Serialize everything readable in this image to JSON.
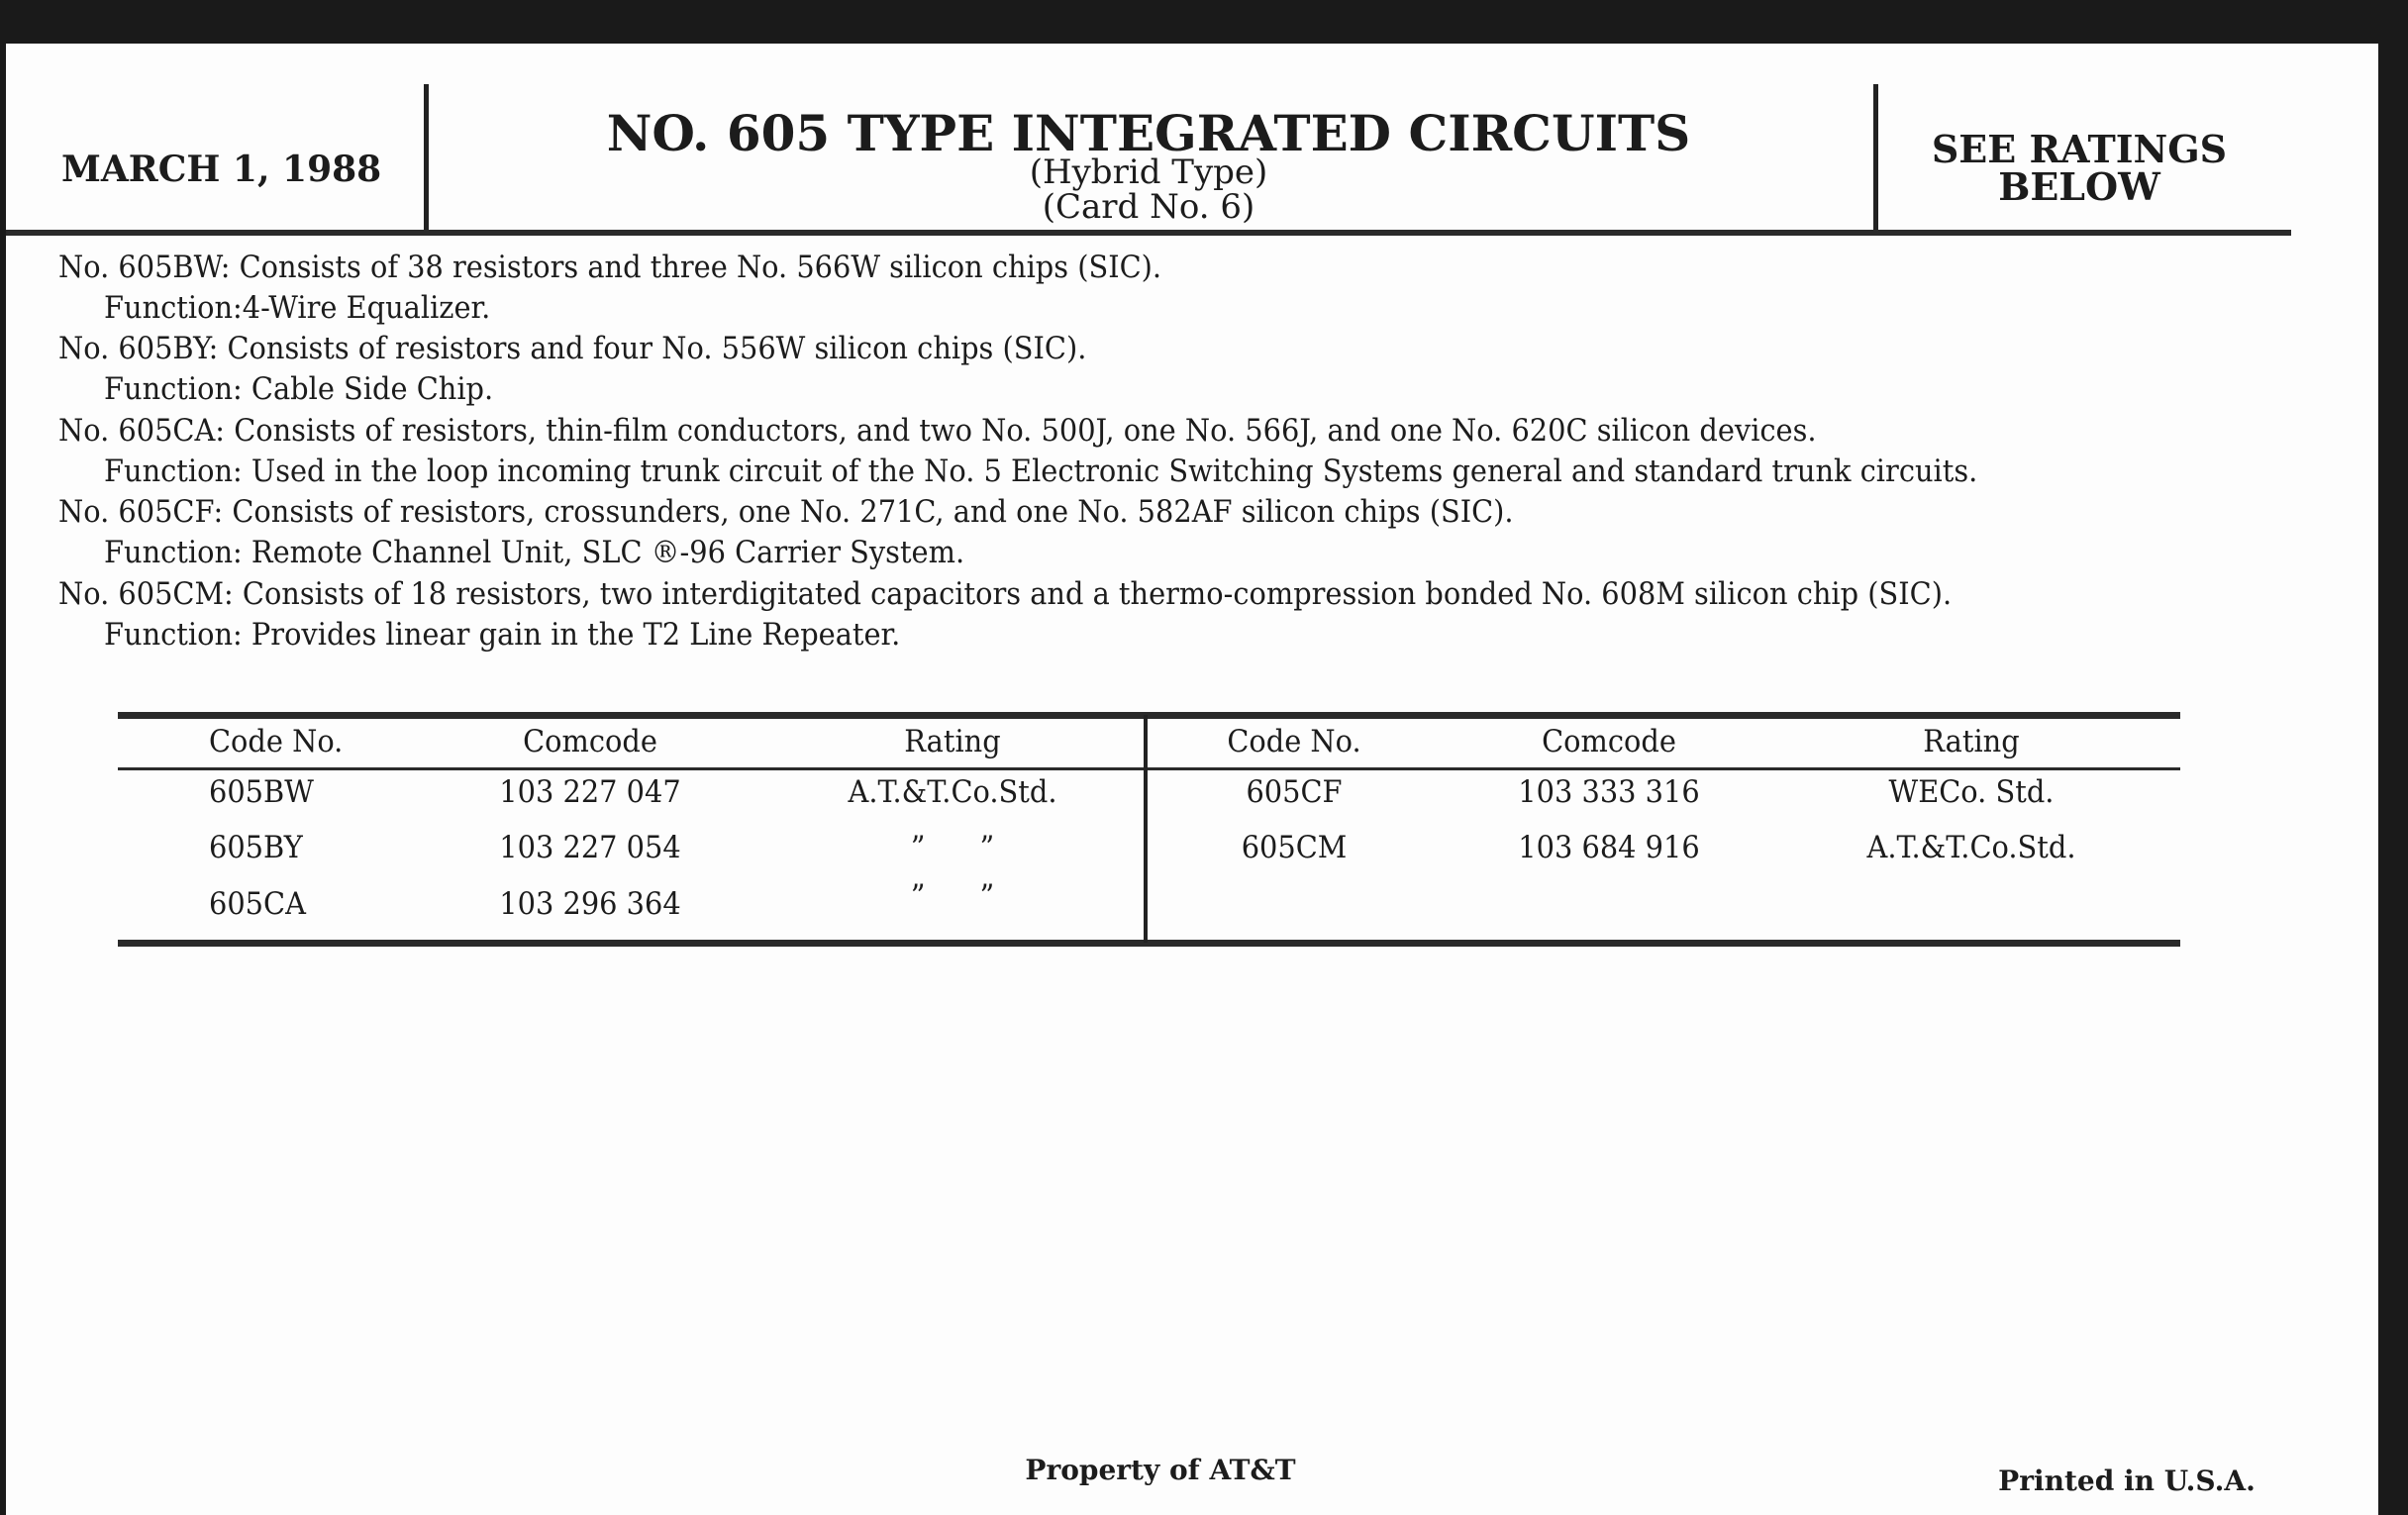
{
  "header": {
    "date": "MARCH 1, 1988",
    "title": "NO. 605 TYPE INTEGRATED CIRCUITS",
    "subtitle1": "(Hybrid Type)",
    "subtitle2": "(Card No. 6)",
    "ratings_line1": "SEE RATINGS",
    "ratings_line2": "BELOW"
  },
  "descriptions": [
    {
      "code": "No. 605BW: Consists of 38 resistors and three No. 566W silicon chips (SIC).",
      "function": "Function:4-Wire Equalizer."
    },
    {
      "code": "No. 605BY: Consists of resistors and four No. 556W silicon chips (SIC).",
      "function": "Function: Cable Side Chip."
    },
    {
      "code": "No. 605CA: Consists of resistors, thin-film conductors, and two No. 500J, one No. 566J, and one No. 620C silicon devices.",
      "function": "Function: Used in the loop incoming trunk circuit of the No. 5 Electronic Switching Systems general and standard trunk circuits."
    },
    {
      "code": "No. 605CF: Consists of resistors, crossunders, one No. 271C, and one No. 582AF silicon chips (SIC).",
      "function": "Function: Remote Channel Unit, SLC ®-96 Carrier System."
    },
    {
      "code": "No. 605CM: Consists of 18 resistors, two interdigitated capacitors and a thermo-compression bonded No. 608M silicon chip (SIC).",
      "function": "Function: Provides linear gain in the T2 Line Repeater."
    }
  ],
  "table": {
    "headers": [
      "Code No.",
      "Comcode",
      "Rating"
    ],
    "left_rows": [
      [
        "605BW",
        "103 227 047",
        "A.T.&T.Co.Std."
      ],
      [
        "605BY",
        "103 227 054",
        "”      ”"
      ],
      [
        "605CA",
        "103 296 364",
        "”      ”"
      ]
    ],
    "right_rows": [
      [
        "605CF",
        "103 333 316",
        "WECo. Std."
      ],
      [
        "605CM",
        "103 684 916",
        "A.T.&T.Co.Std."
      ]
    ]
  },
  "footer": {
    "property": "Property of AT&T",
    "printed": "Printed in U.S.A."
  }
}
